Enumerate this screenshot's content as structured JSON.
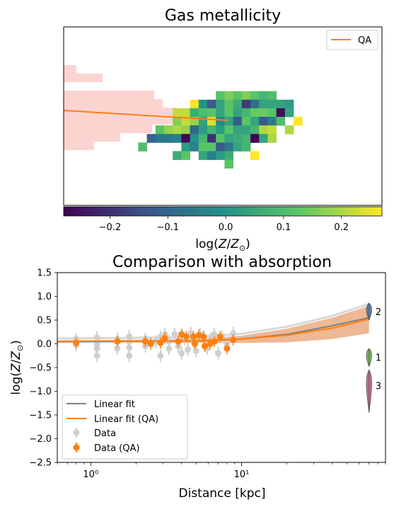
{
  "chart_data": [
    {
      "type": "heatmap",
      "title": "Gas metallicity",
      "legend": {
        "entries": [
          "QA"
        ],
        "position": "top-right"
      },
      "colorbar": {
        "label": "log(Z/Z⊙)",
        "range": [
          -0.28,
          0.27
        ],
        "ticks": [
          "−0.2",
          "−0.1",
          "0.0",
          "0.1",
          "0.2"
        ],
        "tick_values": [
          -0.2,
          -0.1,
          0.0,
          0.1,
          0.2
        ],
        "colormap": "viridis"
      },
      "cells": [
        [
          16,
          7,
          0.12
        ],
        [
          17,
          7,
          0.16
        ],
        [
          18,
          7,
          0.12
        ],
        [
          19,
          7,
          0.16
        ],
        [
          20,
          7,
          0.12
        ],
        [
          21,
          7,
          0.08
        ],
        [
          22,
          7,
          0.1
        ],
        [
          13,
          8,
          0.27
        ],
        [
          14,
          8,
          0.0
        ],
        [
          15,
          8,
          -0.12
        ],
        [
          16,
          8,
          0.04
        ],
        [
          17,
          8,
          0.12
        ],
        [
          18,
          8,
          0.06
        ],
        [
          19,
          8,
          -0.18
        ],
        [
          20,
          8,
          -0.08
        ],
        [
          21,
          8,
          0.04
        ],
        [
          22,
          8,
          0.04
        ],
        [
          23,
          8,
          0.04
        ],
        [
          24,
          8,
          0.02
        ],
        [
          11,
          9,
          0.22
        ],
        [
          12,
          9,
          0.22
        ],
        [
          13,
          9,
          0.06
        ],
        [
          14,
          9,
          0.1
        ],
        [
          15,
          9,
          0.12
        ],
        [
          16,
          9,
          0.04
        ],
        [
          17,
          9,
          0.12
        ],
        [
          18,
          9,
          0.04
        ],
        [
          19,
          9,
          0.08
        ],
        [
          20,
          9,
          0.14
        ],
        [
          21,
          9,
          0.14
        ],
        [
          22,
          9,
          0.12
        ],
        [
          23,
          9,
          -0.26
        ],
        [
          24,
          9,
          0.04
        ],
        [
          11,
          10,
          0.16
        ],
        [
          12,
          10,
          0.22
        ],
        [
          13,
          10,
          0.18
        ],
        [
          14,
          10,
          0.04
        ],
        [
          15,
          10,
          0.24
        ],
        [
          16,
          10,
          -0.02
        ],
        [
          17,
          10,
          0.04
        ],
        [
          18,
          10,
          -0.12
        ],
        [
          19,
          10,
          0.12
        ],
        [
          20,
          10,
          0.04
        ],
        [
          21,
          10,
          -0.12
        ],
        [
          22,
          10,
          -0.05
        ],
        [
          23,
          10,
          0.1
        ],
        [
          25,
          10,
          0.27
        ],
        [
          9,
          11,
          0.12
        ],
        [
          10,
          11,
          0.18
        ],
        [
          11,
          11,
          0.2
        ],
        [
          12,
          11,
          0.18
        ],
        [
          13,
          11,
          -0.1
        ],
        [
          14,
          11,
          0.02
        ],
        [
          15,
          11,
          0.08
        ],
        [
          16,
          11,
          0.02
        ],
        [
          17,
          11,
          0.12
        ],
        [
          18,
          11,
          0.04
        ],
        [
          19,
          11,
          0.04
        ],
        [
          20,
          11,
          0.08
        ],
        [
          21,
          11,
          0.2
        ],
        [
          22,
          11,
          0.22
        ],
        [
          24,
          11,
          0.2
        ],
        [
          8,
          12,
          -0.1
        ],
        [
          9,
          12,
          -0.06
        ],
        [
          10,
          12,
          -0.06
        ],
        [
          11,
          12,
          -0.04
        ],
        [
          12,
          12,
          -0.28
        ],
        [
          13,
          12,
          0.0
        ],
        [
          14,
          12,
          0.08
        ],
        [
          15,
          12,
          -0.2
        ],
        [
          16,
          12,
          0.12
        ],
        [
          17,
          12,
          0.04
        ],
        [
          18,
          12,
          0.06
        ],
        [
          19,
          12,
          0.08
        ],
        [
          20,
          12,
          -0.28
        ],
        [
          21,
          12,
          0.04
        ],
        [
          22,
          12,
          0.2
        ],
        [
          7,
          13,
          0.1
        ],
        [
          12,
          13,
          0.02
        ],
        [
          13,
          13,
          -0.04
        ],
        [
          14,
          13,
          0.12
        ],
        [
          15,
          13,
          0.12
        ],
        [
          16,
          13,
          -0.12
        ],
        [
          17,
          13,
          -0.06
        ],
        [
          18,
          13,
          0.04
        ],
        [
          19,
          13,
          0.08
        ],
        [
          11,
          14,
          0.06
        ],
        [
          12,
          14,
          0.12
        ],
        [
          14,
          14,
          0.04
        ],
        [
          15,
          14,
          -0.04
        ],
        [
          16,
          14,
          0.02
        ],
        [
          17,
          14,
          0.06
        ],
        [
          20,
          14,
          0.27
        ],
        [
          17,
          15,
          0.12
        ]
      ],
      "shaded_region": {
        "description": "pink background histogram (QA)",
        "color": "#fbd3cf"
      },
      "series": [
        {
          "name": "QA",
          "color": "#ff7f0e"
        }
      ]
    },
    {
      "type": "scatter",
      "title": "Comparison with absorption",
      "xlabel": "Distance [kpc]",
      "ylabel": "log(Z/Z⊙)",
      "xscale": "log",
      "xlim": [
        0.6,
        90
      ],
      "ylim": [
        -2.5,
        1.5
      ],
      "yticks": [
        "−2.5",
        "−2.0",
        "−1.5",
        "−1.0",
        "−0.5",
        "0.0",
        "0.5",
        "1.0",
        "1.5"
      ],
      "ytick_values": [
        -2.5,
        -2.0,
        -1.5,
        -1.0,
        -0.5,
        0.0,
        0.5,
        1.0,
        1.5
      ],
      "xticks": [
        "10⁰",
        "10¹"
      ],
      "xtick_values": [
        1,
        10
      ],
      "legend": {
        "position": "lower-left",
        "entries": [
          "Linear fit",
          "Linear fit (QA)",
          "Data",
          "Data (QA)"
        ]
      },
      "series": [
        {
          "name": "Linear fit",
          "color": "#808080",
          "points": [
            [
              0.6,
              0.04
            ],
            [
              5,
              0.06
            ],
            [
              10,
              0.1
            ],
            [
              20,
              0.2
            ],
            [
              40,
              0.38
            ],
            [
              70,
              0.55
            ]
          ]
        },
        {
          "name": "Linear fit (QA)",
          "color": "#ff7f0e",
          "points": [
            [
              0.6,
              0.05
            ],
            [
              5,
              0.06
            ],
            [
              10,
              0.1
            ],
            [
              20,
              0.18
            ],
            [
              40,
              0.33
            ],
            [
              70,
              0.52
            ]
          ],
          "band_upper": [
            [
              0.6,
              0.07
            ],
            [
              5,
              0.1
            ],
            [
              10,
              0.17
            ],
            [
              20,
              0.32
            ],
            [
              40,
              0.55
            ],
            [
              70,
              0.8
            ]
          ],
          "band_lower": [
            [
              0.6,
              0.03
            ],
            [
              5,
              0.02
            ],
            [
              10,
              0.02
            ],
            [
              20,
              0.03
            ],
            [
              40,
              0.1
            ],
            [
              70,
              0.22
            ]
          ]
        },
        {
          "name": "Data",
          "color": "#cfcfcf",
          "points": [
            [
              0.8,
              0.1
            ],
            [
              0.8,
              -0.02
            ],
            [
              1.1,
              0.13
            ],
            [
              1.1,
              -0.1
            ],
            [
              1.1,
              -0.25
            ],
            [
              1.1,
              0.0
            ],
            [
              1.5,
              0.1
            ],
            [
              1.5,
              -0.1
            ],
            [
              1.8,
              0.15
            ],
            [
              1.8,
              -0.25
            ],
            [
              1.8,
              0.05
            ],
            [
              1.8,
              -0.08
            ],
            [
              2.3,
              0.1
            ],
            [
              2.3,
              -0.05
            ],
            [
              2.5,
              0.0
            ],
            [
              2.7,
              0.05
            ],
            [
              2.9,
              0.15
            ],
            [
              2.9,
              -0.25
            ],
            [
              3.1,
              0.2
            ],
            [
              3.3,
              0.05
            ],
            [
              3.3,
              -0.1
            ],
            [
              3.6,
              0.2
            ],
            [
              3.8,
              -0.05
            ],
            [
              4.0,
              0.18
            ],
            [
              4.0,
              -0.2
            ],
            [
              4.2,
              0.1
            ],
            [
              4.4,
              -0.12
            ],
            [
              4.6,
              0.22
            ],
            [
              4.8,
              0.05
            ],
            [
              5.0,
              -0.15
            ],
            [
              5.3,
              0.2
            ],
            [
              5.6,
              0.15
            ],
            [
              5.9,
              -0.1
            ],
            [
              6.2,
              0.1
            ],
            [
              6.6,
              0.2
            ],
            [
              7.0,
              -0.2
            ],
            [
              7.4,
              0.15
            ],
            [
              8.0,
              0.0
            ],
            [
              8.8,
              0.22
            ]
          ]
        },
        {
          "name": "Data (QA)",
          "color": "#ff7f0e",
          "points": [
            [
              0.8,
              0.02
            ],
            [
              1.5,
              0.05
            ],
            [
              2.3,
              0.05
            ],
            [
              2.5,
              0.0
            ],
            [
              2.9,
              0.02
            ],
            [
              3.1,
              0.12
            ],
            [
              3.8,
              0.05
            ],
            [
              4.0,
              0.2
            ],
            [
              4.3,
              0.15
            ],
            [
              4.8,
              0.15
            ],
            [
              4.9,
              0.0
            ],
            [
              5.2,
              0.18
            ],
            [
              5.6,
              0.15
            ],
            [
              5.7,
              -0.05
            ],
            [
              6.2,
              0.0
            ],
            [
              6.6,
              0.05
            ],
            [
              7.2,
              0.15
            ],
            [
              8.0,
              -0.1
            ],
            [
              8.8,
              0.08
            ]
          ]
        }
      ],
      "absorption": [
        {
          "label": "2",
          "color": "#4c72b0",
          "x": 70,
          "center": 0.68,
          "spread": [
            0.5,
            0.86
          ]
        },
        {
          "label": "1",
          "color": "#6ab04c",
          "x": 70,
          "center": -0.28,
          "spread": [
            -0.48,
            -0.1
          ]
        },
        {
          "label": "3",
          "color": "#c4617a",
          "x": 70,
          "center": -0.88,
          "spread": [
            -1.45,
            -0.55
          ]
        }
      ]
    }
  ]
}
